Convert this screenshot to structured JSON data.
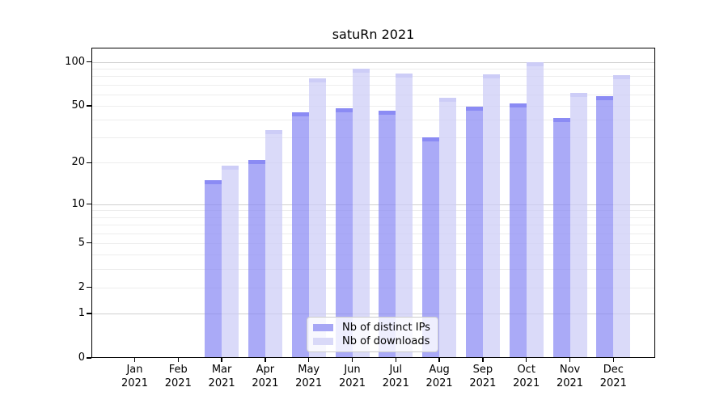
{
  "figure": {
    "title": "satuRn 2021"
  },
  "chart_data": {
    "type": "bar",
    "title": "satuRn 2021",
    "categories": [
      "Jan",
      "Feb",
      "Mar",
      "Apr",
      "May",
      "Jun",
      "Jul",
      "Aug",
      "Sep",
      "Oct",
      "Nov",
      "Dec"
    ],
    "x_axis": {
      "year": "2021"
    },
    "y_axis": {
      "scale": "log1p",
      "tick_values": [
        100,
        50,
        20,
        10,
        5,
        2,
        1,
        0
      ],
      "tick_labels": [
        "100",
        "50",
        "20",
        "10",
        "5",
        "2",
        "1",
        "0"
      ],
      "major_gridlines": [
        100,
        10,
        1
      ],
      "minor_gridlines": [
        90,
        80,
        70,
        60,
        50,
        40,
        30,
        20,
        9,
        8,
        7,
        6,
        5,
        4,
        3,
        2
      ],
      "ylim": [
        0,
        126
      ]
    },
    "series": [
      {
        "key": "distinct-ips",
        "name": "Nb of distinct IPs",
        "values": [
          0,
          0,
          15,
          21,
          45,
          48,
          46,
          30,
          49,
          52,
          41,
          58
        ],
        "color": "rgba(134,134,243,0.70)",
        "cap_color": "rgba(134,134,243,0.86)",
        "legend_color": "#a6a6f5"
      },
      {
        "key": "downloads",
        "name": "Nb of downloads",
        "values": [
          0,
          0,
          19,
          34,
          77,
          90,
          83,
          57,
          82,
          100,
          61,
          81
        ],
        "color": "rgba(203,203,246,0.70)",
        "cap_color": "rgba(203,203,246,0.88)",
        "legend_color": "#d9d9f8"
      }
    ],
    "legend": {
      "labels": [
        "Nb of distinct IPs",
        "Nb of downloads"
      ],
      "position": "bottom-center"
    },
    "grid": true
  },
  "colors": {
    "background": "#ffffff",
    "axis": "#000000",
    "grid_major": "#d0d0d0",
    "grid_minor": "#ededed"
  }
}
